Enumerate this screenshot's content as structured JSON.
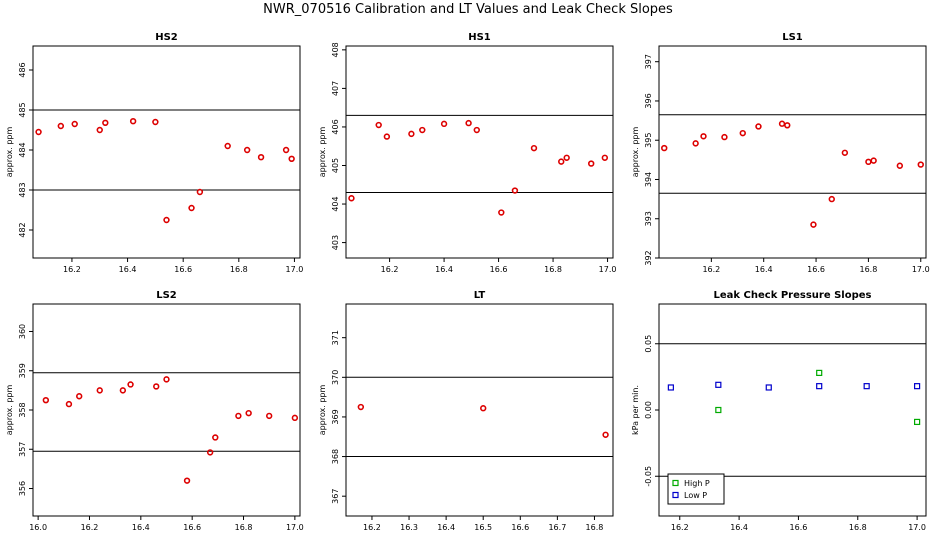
{
  "figure": {
    "title": "NWR_070516  Calibration and LT Values and Leak Check Slopes"
  },
  "chart_data": [
    {
      "type": "scatter",
      "title": "HS2",
      "ylabel": "approx. ppm",
      "xlim": [
        16.06,
        17.02
      ],
      "ylim": [
        481.3,
        486.6
      ],
      "xticks": [
        16.2,
        16.4,
        16.6,
        16.8,
        17.0
      ],
      "xtick_labels": [
        "16.2",
        "16.4",
        "16.6",
        "16.8",
        "17.0"
      ],
      "yticks": [
        482,
        483,
        484,
        485,
        486
      ],
      "ytick_labels": [
        "482",
        "483",
        "484",
        "485",
        "486"
      ],
      "hlines": [
        485.0,
        483.0
      ],
      "series": [
        {
          "name": "values",
          "color": "#dd0000",
          "marker": "circle",
          "x": [
            16.08,
            16.16,
            16.21,
            16.3,
            16.32,
            16.42,
            16.5,
            16.54,
            16.63,
            16.66,
            16.76,
            16.83,
            16.88,
            16.97,
            16.99
          ],
          "y": [
            484.45,
            484.6,
            484.65,
            484.5,
            484.68,
            484.72,
            484.7,
            482.25,
            482.55,
            482.95,
            484.1,
            484.0,
            483.82,
            484.0,
            483.78
          ]
        }
      ]
    },
    {
      "type": "scatter",
      "title": "HS1",
      "ylabel": "approx. ppm",
      "xlim": [
        16.04,
        17.02
      ],
      "ylim": [
        402.6,
        408.1
      ],
      "xticks": [
        16.2,
        16.4,
        16.6,
        16.8,
        17.0
      ],
      "xtick_labels": [
        "16.2",
        "16.4",
        "16.6",
        "16.8",
        "17.0"
      ],
      "yticks": [
        403,
        404,
        405,
        406,
        407,
        408
      ],
      "ytick_labels": [
        "403",
        "404",
        "405",
        "406",
        "407",
        "408"
      ],
      "hlines": [
        406.3,
        404.3
      ],
      "series": [
        {
          "name": "values",
          "color": "#dd0000",
          "marker": "circle",
          "x": [
            16.06,
            16.16,
            16.19,
            16.28,
            16.32,
            16.4,
            16.49,
            16.52,
            16.61,
            16.66,
            16.73,
            16.83,
            16.85,
            16.94,
            16.99
          ],
          "y": [
            404.15,
            406.05,
            405.75,
            405.82,
            405.92,
            406.08,
            406.1,
            405.92,
            403.78,
            404.35,
            405.45,
            405.1,
            405.2,
            405.05,
            405.2
          ]
        }
      ]
    },
    {
      "type": "scatter",
      "title": "LS1",
      "ylabel": "approx. ppm",
      "xlim": [
        16.0,
        17.02
      ],
      "ylim": [
        392.0,
        397.4
      ],
      "xticks": [
        16.2,
        16.4,
        16.6,
        16.8,
        17.0
      ],
      "xtick_labels": [
        "16.2",
        "16.4",
        "16.6",
        "16.8",
        "17.0"
      ],
      "yticks": [
        392,
        393,
        394,
        395,
        396,
        397
      ],
      "ytick_labels": [
        "392",
        "393",
        "394",
        "395",
        "396",
        "397"
      ],
      "hlines": [
        395.65,
        393.65
      ],
      "series": [
        {
          "name": "values",
          "color": "#dd0000",
          "marker": "circle",
          "x": [
            16.02,
            16.14,
            16.17,
            16.25,
            16.32,
            16.38,
            16.47,
            16.49,
            16.59,
            16.66,
            16.71,
            16.8,
            16.82,
            16.92,
            17.0
          ],
          "y": [
            394.8,
            394.92,
            395.1,
            395.08,
            395.18,
            395.35,
            395.42,
            395.38,
            392.85,
            393.5,
            394.68,
            394.45,
            394.48,
            394.35,
            394.38
          ]
        }
      ]
    },
    {
      "type": "scatter",
      "title": "LS2",
      "ylabel": "approx. ppm",
      "xlim": [
        15.98,
        17.02
      ],
      "ylim": [
        355.3,
        360.7
      ],
      "xticks": [
        16.0,
        16.2,
        16.4,
        16.6,
        16.8,
        17.0
      ],
      "xtick_labels": [
        "16.0",
        "16.2",
        "16.4",
        "16.6",
        "16.8",
        "17.0"
      ],
      "yticks": [
        356,
        357,
        358,
        359,
        360
      ],
      "ytick_labels": [
        "356",
        "357",
        "358",
        "359",
        "360"
      ],
      "hlines": [
        358.95,
        356.95
      ],
      "series": [
        {
          "name": "values",
          "color": "#dd0000",
          "marker": "circle",
          "x": [
            16.03,
            16.12,
            16.16,
            16.24,
            16.33,
            16.36,
            16.46,
            16.5,
            16.58,
            16.67,
            16.69,
            16.78,
            16.82,
            16.9,
            17.0
          ],
          "y": [
            358.25,
            358.15,
            358.35,
            358.5,
            358.5,
            358.65,
            358.6,
            358.78,
            356.2,
            356.92,
            357.3,
            357.85,
            357.92,
            357.85,
            357.8
          ]
        }
      ]
    },
    {
      "type": "scatter",
      "title": "LT",
      "ylabel": "approx. ppm",
      "xlim": [
        16.13,
        16.85
      ],
      "ylim": [
        366.5,
        371.85
      ],
      "xticks": [
        16.2,
        16.3,
        16.4,
        16.5,
        16.6,
        16.7,
        16.8
      ],
      "xtick_labels": [
        "16.2",
        "16.3",
        "16.4",
        "16.5",
        "16.6",
        "16.7",
        "16.8"
      ],
      "yticks": [
        367,
        368,
        369,
        370,
        371
      ],
      "ytick_labels": [
        "367",
        "368",
        "369",
        "370",
        "371"
      ],
      "hlines": [
        370.0,
        368.0
      ],
      "series": [
        {
          "name": "values",
          "color": "#dd0000",
          "marker": "circle",
          "x": [
            16.17,
            16.5,
            16.83
          ],
          "y": [
            369.25,
            369.22,
            368.55
          ]
        }
      ]
    },
    {
      "type": "scatter",
      "title": "Leak Check Pressure Slopes",
      "ylabel": "kPa per min.",
      "xlim": [
        16.13,
        17.03
      ],
      "ylim": [
        -0.08,
        0.08
      ],
      "xticks": [
        16.2,
        16.4,
        16.6,
        16.8,
        17.0
      ],
      "xtick_labels": [
        "16.2",
        "16.4",
        "16.6",
        "16.8",
        "17.0"
      ],
      "yticks": [
        -0.05,
        0.0,
        0.05
      ],
      "ytick_labels": [
        "-0.05",
        "0.00",
        "0.05"
      ],
      "hlines": [
        0.05,
        -0.05
      ],
      "legend": {
        "position": "bottom-left",
        "entries": [
          {
            "label": "High P",
            "color": "#00aa00"
          },
          {
            "label": "Low P",
            "color": "#0000cc"
          }
        ]
      },
      "series": [
        {
          "name": "High P",
          "color": "#00aa00",
          "marker": "square",
          "x": [
            16.33,
            16.67,
            17.0
          ],
          "y": [
            0.0,
            0.028,
            -0.009
          ]
        },
        {
          "name": "Low P",
          "color": "#0000cc",
          "marker": "square",
          "x": [
            16.17,
            16.33,
            16.5,
            16.67,
            16.83,
            17.0
          ],
          "y": [
            0.017,
            0.019,
            0.017,
            0.018,
            0.018,
            0.018
          ]
        }
      ]
    }
  ]
}
